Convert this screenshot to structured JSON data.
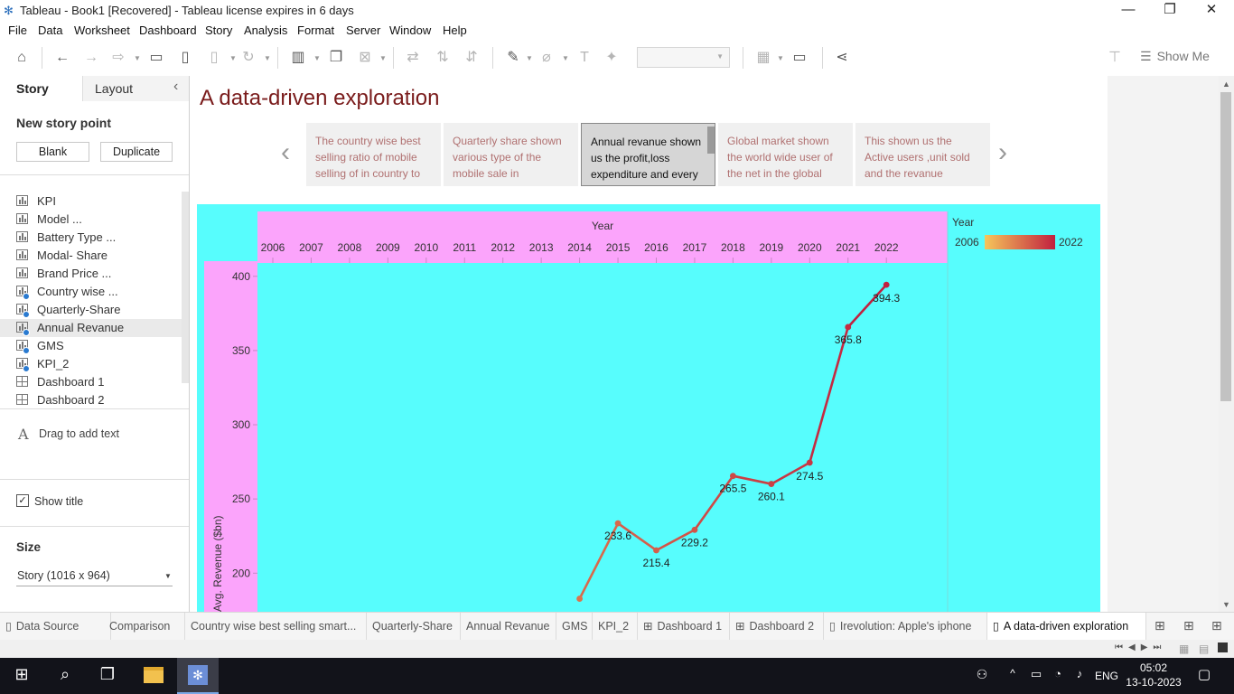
{
  "window": {
    "title": "Tableau - Book1 [Recovered] - Tableau license expires in 6 days"
  },
  "menu": [
    "File",
    "Data",
    "Worksheet",
    "Dashboard",
    "Story",
    "Analysis",
    "Format",
    "Server",
    "Window",
    "Help"
  ],
  "toolbar": {
    "show_me": "Show Me"
  },
  "left_pane": {
    "tabs": {
      "story": "Story",
      "layout": "Layout"
    },
    "new_story_point": "New story point",
    "blank_button": "Blank",
    "duplicate_button": "Duplicate",
    "sheets": [
      {
        "label": "KPI",
        "type": "worksheet",
        "used": false
      },
      {
        "label": "Model ...",
        "type": "worksheet",
        "used": false
      },
      {
        "label": "Battery Type ...",
        "type": "worksheet",
        "used": false
      },
      {
        "label": "Modal- Share",
        "type": "worksheet",
        "used": false
      },
      {
        "label": "Brand Price ...",
        "type": "worksheet",
        "used": false
      },
      {
        "label": "Country wise ...",
        "type": "worksheet",
        "used": true
      },
      {
        "label": "Quarterly-Share",
        "type": "worksheet",
        "used": true
      },
      {
        "label": "Annual Revanue",
        "type": "worksheet",
        "used": true
      },
      {
        "label": "GMS",
        "type": "worksheet",
        "used": true
      },
      {
        "label": "KPI_2",
        "type": "worksheet",
        "used": true
      },
      {
        "label": "Dashboard 1",
        "type": "dashboard",
        "used": false
      },
      {
        "label": "Dashboard 2",
        "type": "dashboard",
        "used": false
      }
    ],
    "drag_text": "Drag to add text",
    "show_title": "Show title",
    "show_title_checked": true,
    "size_label": "Size",
    "size_value": "Story (1016 x 964)"
  },
  "story": {
    "title": "A data-driven exploration",
    "points": [
      "The country wise best selling ratio of mobile selling of in country to",
      "Quarterly share shown various type of  the mobile sale in",
      "Annual revanue shown us the profit,loss expenditure and every",
      "Global market shown the world wide user of the net in the global",
      "This shown us the Active users ,unit sold and the revanue"
    ],
    "active_point": 2
  },
  "chart_data": {
    "type": "line",
    "column_header": "Year",
    "ylabel": "Avg. Revenue ($bn)",
    "x_ticks": [
      "2006",
      "2007",
      "2008",
      "2009",
      "2010",
      "2011",
      "2012",
      "2013",
      "2014",
      "2015",
      "2016",
      "2017",
      "2018",
      "2019",
      "2020",
      "2021",
      "2022"
    ],
    "y_ticks": [
      "400",
      "350",
      "300",
      "250",
      "200"
    ],
    "ylim": [
      174,
      409
    ],
    "points": [
      {
        "year": "2014",
        "value": 182.8,
        "label": ""
      },
      {
        "year": "2015",
        "value": 233.6,
        "label": "233.6"
      },
      {
        "year": "2016",
        "value": 215.4,
        "label": "215.4"
      },
      {
        "year": "2017",
        "value": 229.2,
        "label": "229.2"
      },
      {
        "year": "2018",
        "value": 265.5,
        "label": "265.5"
      },
      {
        "year": "2019",
        "value": 260.1,
        "label": "260.1"
      },
      {
        "year": "2020",
        "value": 274.5,
        "label": "274.5"
      },
      {
        "year": "2021",
        "value": 365.8,
        "label": "365.8"
      },
      {
        "year": "2022",
        "value": 394.3,
        "label": "394.3"
      }
    ],
    "legend": {
      "title": "Year",
      "min": "2006",
      "max": "2022",
      "color_low": "#f6c65b",
      "color_high": "#c1203f"
    },
    "colors": {
      "background": "#57fdfd",
      "header": "#fba4fb"
    }
  },
  "sheet_tabs": [
    {
      "label": "Data Source",
      "icon": "database-icon"
    },
    {
      "label": "Comparison",
      "icon": ""
    },
    {
      "label": "Country wise best selling smart...",
      "icon": ""
    },
    {
      "label": "Quarterly-Share",
      "icon": ""
    },
    {
      "label": "Annual Revanue",
      "icon": ""
    },
    {
      "label": "GMS",
      "icon": ""
    },
    {
      "label": "KPI_2",
      "icon": ""
    },
    {
      "label": "Dashboard 1",
      "icon": "dashboard-icon"
    },
    {
      "label": "Dashboard 2",
      "icon": "dashboard-icon"
    },
    {
      "label": "Irevolution: Apple's iphone",
      "icon": "story-icon"
    },
    {
      "label": "A data-driven exploration",
      "icon": "story-icon"
    }
  ],
  "taskbar": {
    "language": "ENG",
    "time": "05:02",
    "date": "13-10-2023"
  }
}
